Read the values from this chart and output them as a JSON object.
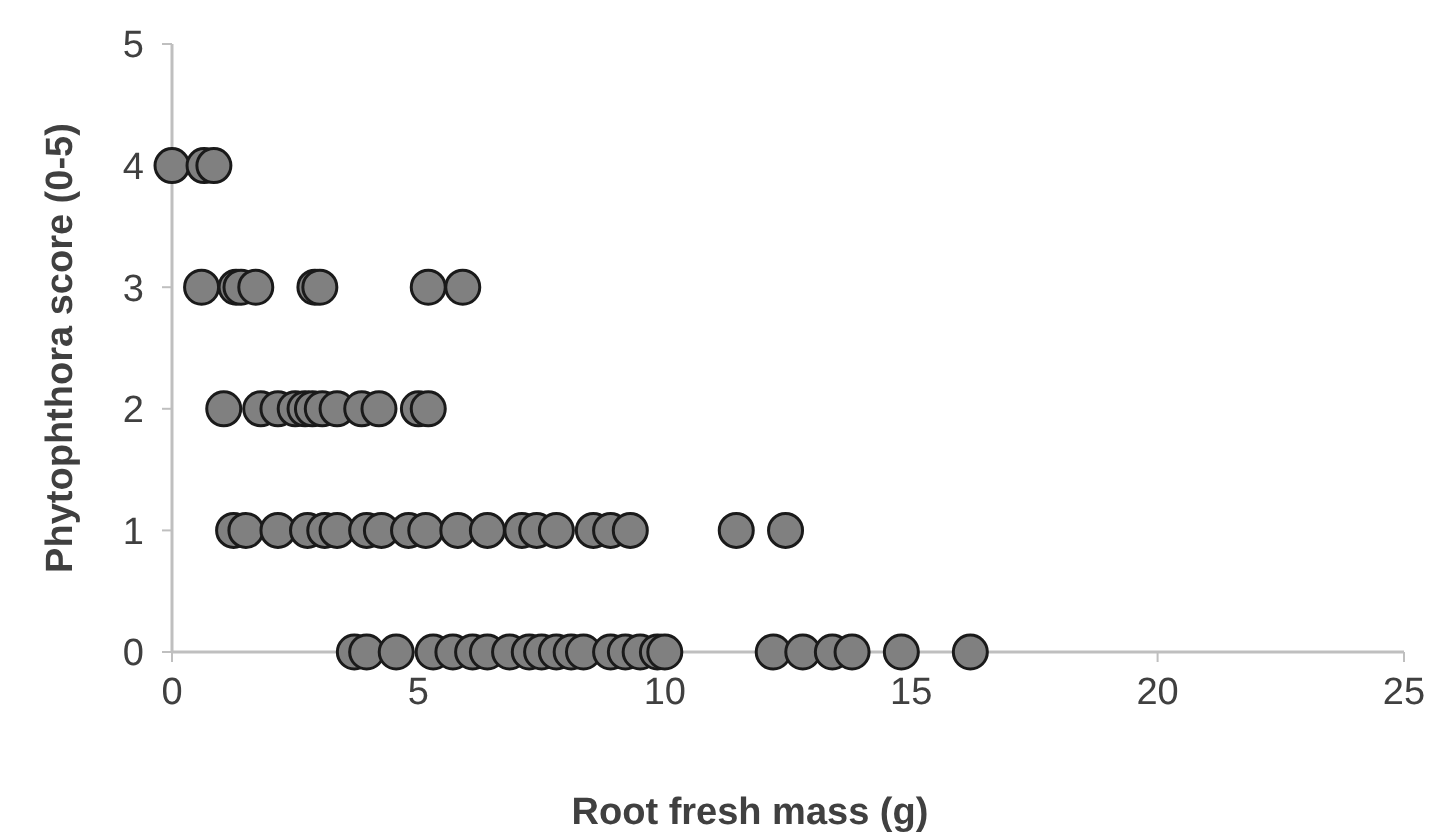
{
  "chart_data": {
    "type": "scatter",
    "xlabel": "Root fresh mass (g)",
    "ylabel": "Phytophthora score (0-5)",
    "xlim": [
      0,
      25
    ],
    "xticks": [
      0,
      5,
      10,
      15,
      20,
      25
    ],
    "ylim": [
      0,
      5
    ],
    "yticks": [
      0,
      1,
      2,
      3,
      4,
      5
    ],
    "grid": false,
    "marker": "circle",
    "series": [
      {
        "color": "#808080",
        "x": [
          0,
          0.65,
          0.85,
          0.6,
          1.3,
          1.4,
          1.7,
          2.9,
          3.0,
          5.2,
          5.9,
          1.05,
          1.8,
          2.15,
          2.5,
          2.7,
          2.85,
          3.05,
          3.35,
          3.85,
          4.2,
          5.0,
          5.2,
          1.25,
          1.5,
          2.15,
          2.75,
          3.1,
          3.35,
          3.95,
          4.25,
          4.8,
          5.15,
          5.8,
          6.4,
          7.1,
          7.4,
          7.8,
          8.55,
          8.9,
          9.3,
          11.45,
          12.45,
          3.7,
          3.95,
          4.55,
          5.3,
          5.7,
          6.1,
          6.4,
          6.85,
          7.25,
          7.5,
          7.8,
          8.1,
          8.35,
          8.9,
          9.2,
          9.5,
          9.85,
          10.0,
          12.2,
          12.8,
          13.4,
          13.8,
          14.8,
          16.2
        ],
        "values": [
          4,
          4,
          4,
          3,
          3,
          3,
          3,
          3,
          3,
          3,
          3,
          2,
          2,
          2,
          2,
          2,
          2,
          2,
          2,
          2,
          2,
          2,
          2,
          1,
          1,
          1,
          1,
          1,
          1,
          1,
          1,
          1,
          1,
          1,
          1,
          1,
          1,
          1,
          1,
          1,
          1,
          1,
          1,
          0,
          0,
          0,
          0,
          0,
          0,
          0,
          0,
          0,
          0,
          0,
          0,
          0,
          0,
          0,
          0,
          0,
          0,
          0,
          0,
          0,
          0,
          0,
          0
        ]
      }
    ]
  }
}
